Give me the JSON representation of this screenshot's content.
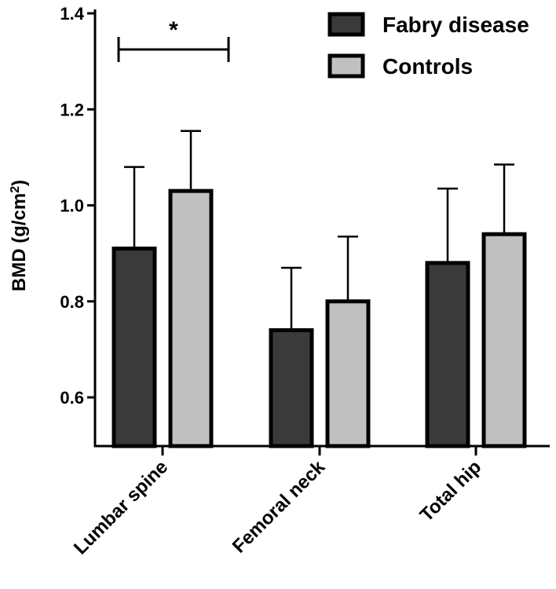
{
  "chart_data": {
    "type": "bar",
    "title": "",
    "xlabel": "",
    "ylabel": "BMD (g/cm",
    "ylabel_sup": "2",
    "ylabel_close": ")",
    "ylim": [
      0.5,
      1.4
    ],
    "yticks": [
      "0.6",
      "0.8",
      "1.0",
      "1.2",
      "1.4"
    ],
    "categories": [
      "Lumbar spine",
      "Femoral neck",
      "Total hip"
    ],
    "series": [
      {
        "name": "Fabry disease",
        "color": "#3a3a3a",
        "values": [
          0.91,
          0.74,
          0.88
        ],
        "error_upper": [
          1.08,
          0.87,
          1.035
        ]
      },
      {
        "name": "Controls",
        "color": "#c0c0c0",
        "values": [
          1.03,
          0.8,
          0.94
        ],
        "error_upper": [
          1.155,
          0.935,
          1.085
        ]
      }
    ],
    "error_bars": "upper",
    "legend_position": "top-right",
    "annotations": [
      {
        "text": "*",
        "category": "Lumbar spine",
        "y": 1.33,
        "meaning": "significant difference between groups"
      }
    ]
  }
}
